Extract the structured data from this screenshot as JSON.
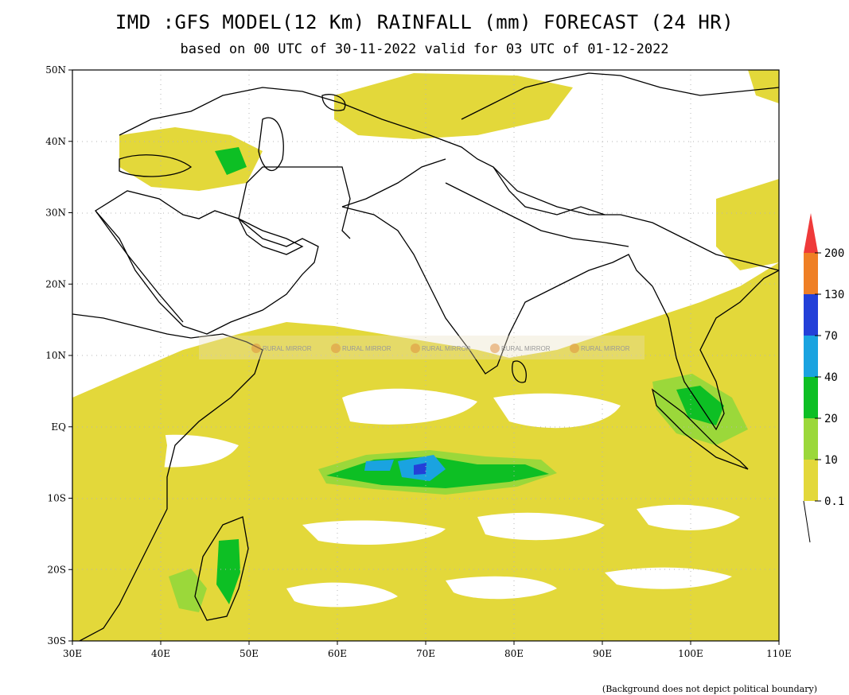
{
  "title": "IMD :GFS MODEL(12 Km) RAINFALL (mm) FORECAST (24 HR)",
  "subtitle": "based on 00 UTC of 30-11-2022 valid for 03 UTC of 01-12-2022",
  "footer": "(Background does not depict political boundary)",
  "map": {
    "lat_labels": [
      "50N",
      "40N",
      "30N",
      "20N",
      "10N",
      "EQ",
      "10S",
      "20S",
      "30S"
    ],
    "lon_labels": [
      "30E",
      "40E",
      "50E",
      "60E",
      "70E",
      "80E",
      "90E",
      "100E",
      "110E"
    ],
    "lat_range": [
      -30,
      50
    ],
    "lon_range": [
      30,
      110
    ],
    "grid": "dotted"
  },
  "colorbar": {
    "levels": [
      "0.1",
      "10",
      "20",
      "40",
      "70",
      "130",
      "200"
    ],
    "colors": [
      "#e3d83a",
      "#9bd83a",
      "#0dbf24",
      "#1aa3e0",
      "#2340d8",
      "#ef7f25",
      "#ef3a3a"
    ]
  },
  "watermark": "RURAL MIRROR"
}
